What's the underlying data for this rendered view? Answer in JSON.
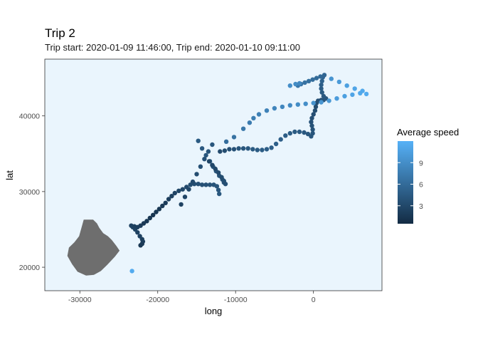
{
  "chart_data": {
    "type": "scatter",
    "title": "Trip 2",
    "subtitle": "Trip start: 2020-01-09 11:46:00, Trip end: 2020-01-10 09:11:00",
    "xlabel": "long",
    "ylabel": "lat",
    "xlim": [
      -34500,
      8800
    ],
    "ylim": [
      16900,
      47500
    ],
    "x_ticks": [
      -30000,
      -20000,
      -10000,
      0
    ],
    "x_tick_labels": [
      "-30000",
      "-20000",
      "-10000",
      "0"
    ],
    "y_ticks": [
      20000,
      30000,
      40000
    ],
    "y_tick_labels": [
      "20000",
      "30000",
      "40000"
    ],
    "panel_background": "#eaf5fd",
    "land_color": "#6e6e6e",
    "legend": {
      "title": "Average speed",
      "position": "right",
      "ticks": [
        3,
        6,
        9
      ],
      "tick_labels": [
        "3",
        "6",
        "9"
      ],
      "range": [
        0.5,
        12
      ],
      "low_color": "#132b43",
      "high_color": "#56b1f7"
    },
    "land_outline": [
      [
        -29500,
        26300
      ],
      [
        -28300,
        26300
      ],
      [
        -27800,
        25800
      ],
      [
        -27500,
        25200
      ],
      [
        -27000,
        24500
      ],
      [
        -26400,
        24100
      ],
      [
        -25900,
        23600
      ],
      [
        -25300,
        22800
      ],
      [
        -24900,
        22200
      ],
      [
        -25500,
        21400
      ],
      [
        -26500,
        20300
      ],
      [
        -27300,
        19500
      ],
      [
        -28200,
        19000
      ],
      [
        -29200,
        18900
      ],
      [
        -30300,
        19400
      ],
      [
        -31000,
        20400
      ],
      [
        -31600,
        21500
      ],
      [
        -31400,
        22600
      ],
      [
        -30700,
        23300
      ],
      [
        -30100,
        24100
      ],
      [
        -29800,
        25200
      ]
    ],
    "series": [
      {
        "points": [
          [
            -23300,
            19500,
            11.5
          ],
          [
            -22200,
            22900,
            1.5
          ],
          [
            -22000,
            23100,
            1.8
          ],
          [
            -21900,
            23400,
            2.0
          ],
          [
            -22000,
            23700,
            2.2
          ],
          [
            -22300,
            24100,
            2.4
          ],
          [
            -22600,
            24600,
            2.5
          ],
          [
            -22900,
            25000,
            2.6
          ],
          [
            -23200,
            25300,
            2.7
          ],
          [
            -23400,
            25500,
            2.5
          ],
          [
            -23000,
            25400,
            2.3
          ],
          [
            -22600,
            25300,
            2.2
          ],
          [
            -22200,
            25500,
            2.0
          ],
          [
            -21800,
            25800,
            1.8
          ],
          [
            -21400,
            26100,
            1.6
          ],
          [
            -21000,
            26500,
            1.5
          ],
          [
            -20600,
            26900,
            1.4
          ],
          [
            -20200,
            27300,
            1.5
          ],
          [
            -19800,
            27700,
            1.6
          ],
          [
            -19400,
            28100,
            1.8
          ],
          [
            -19000,
            28500,
            2.0
          ],
          [
            -18600,
            29000,
            2.2
          ],
          [
            -18200,
            29400,
            2.4
          ],
          [
            -17800,
            29800,
            2.6
          ],
          [
            -17300,
            30100,
            2.8
          ],
          [
            -16800,
            30300,
            3.0
          ],
          [
            -16300,
            30600,
            3.2
          ],
          [
            -15800,
            30900,
            3.4
          ],
          [
            -15300,
            31000,
            3.5
          ],
          [
            -14800,
            31000,
            3.6
          ],
          [
            -14300,
            30900,
            3.7
          ],
          [
            -13800,
            30900,
            3.8
          ],
          [
            -13300,
            30900,
            3.9
          ],
          [
            -12800,
            30900,
            4.0
          ],
          [
            -12400,
            30700,
            4.1
          ],
          [
            -12200,
            30200,
            4.2
          ],
          [
            -12100,
            29700,
            4.3
          ],
          [
            -17000,
            28300,
            2.5
          ],
          [
            -16500,
            29300,
            2.8
          ],
          [
            -16000,
            30300,
            3.0
          ],
          [
            -15500,
            31300,
            3.2
          ],
          [
            -15000,
            32300,
            3.4
          ],
          [
            -14500,
            33300,
            3.6
          ],
          [
            -14000,
            34300,
            3.8
          ],
          [
            -13500,
            35300,
            4.0
          ],
          [
            -13000,
            36200,
            4.2
          ],
          [
            -14800,
            36700,
            4.5
          ],
          [
            -14300,
            35700,
            4.4
          ],
          [
            -13800,
            34800,
            4.3
          ],
          [
            -13300,
            34000,
            4.2
          ],
          [
            -12900,
            33300,
            4.1
          ],
          [
            -12500,
            32700,
            4.0
          ],
          [
            -12100,
            32100,
            3.9
          ],
          [
            -11700,
            31600,
            3.8
          ],
          [
            -11500,
            31200,
            3.7
          ],
          [
            -11300,
            31000,
            3.6
          ],
          [
            -11500,
            31400,
            3.5
          ],
          [
            -11800,
            31900,
            3.4
          ],
          [
            -12200,
            32500,
            3.2
          ],
          [
            -12600,
            33000,
            3.0
          ],
          [
            -13000,
            33500,
            2.9
          ],
          [
            -13400,
            34000,
            2.8
          ],
          [
            -12000,
            35300,
            3.2
          ],
          [
            -11400,
            35400,
            3.4
          ],
          [
            -10800,
            35600,
            3.6
          ],
          [
            -10200,
            35600,
            3.8
          ],
          [
            -9600,
            35700,
            4.0
          ],
          [
            -9000,
            35700,
            4.2
          ],
          [
            -8400,
            35700,
            4.4
          ],
          [
            -7800,
            35600,
            4.5
          ],
          [
            -7200,
            35500,
            4.6
          ],
          [
            -6600,
            35500,
            4.7
          ],
          [
            -6000,
            35600,
            4.8
          ],
          [
            -5400,
            35800,
            4.9
          ],
          [
            -4800,
            36300,
            5.0
          ],
          [
            -4200,
            36900,
            4.9
          ],
          [
            -3600,
            37400,
            4.8
          ],
          [
            -3000,
            37700,
            4.7
          ],
          [
            -2400,
            37900,
            4.6
          ],
          [
            -1800,
            37900,
            4.5
          ],
          [
            -1200,
            37800,
            4.4
          ],
          [
            -700,
            37600,
            4.3
          ],
          [
            -300,
            37300,
            4.2
          ],
          [
            -100,
            37700,
            4.1
          ],
          [
            -100,
            38200,
            4.0
          ],
          [
            -200,
            38700,
            3.9
          ],
          [
            -300,
            39200,
            3.8
          ],
          [
            -200,
            39700,
            3.7
          ],
          [
            0,
            40200,
            3.6
          ],
          [
            200,
            40700,
            3.5
          ],
          [
            300,
            41200,
            3.4
          ],
          [
            400,
            41700,
            3.5
          ],
          [
            600,
            42000,
            3.6
          ],
          [
            1000,
            42100,
            3.8
          ],
          [
            1300,
            42100,
            4.0
          ],
          [
            1600,
            42300,
            4.2
          ],
          [
            1300,
            42600,
            4.4
          ],
          [
            1100,
            43100,
            4.6
          ],
          [
            1000,
            43600,
            4.8
          ],
          [
            1000,
            44100,
            5.0
          ],
          [
            1100,
            44600,
            5.2
          ],
          [
            1200,
            45100,
            5.4
          ],
          [
            1400,
            45400,
            5.6
          ],
          [
            900,
            45200,
            5.8
          ],
          [
            400,
            45000,
            6.0
          ],
          [
            -100,
            44800,
            6.2
          ],
          [
            -600,
            44600,
            6.4
          ],
          [
            -1100,
            44400,
            6.6
          ],
          [
            -1600,
            44200,
            6.8
          ],
          [
            -2000,
            44000,
            7.0
          ],
          [
            -3000,
            44000,
            9.0
          ],
          [
            -2300,
            44200,
            8.8
          ],
          [
            -1800,
            44300,
            8.5
          ],
          [
            2300,
            44900,
            9.5
          ],
          [
            3300,
            44500,
            10.0
          ],
          [
            4300,
            44000,
            10.5
          ],
          [
            5300,
            43600,
            11.0
          ],
          [
            6300,
            43300,
            11.3
          ],
          [
            6800,
            42900,
            11.5
          ],
          [
            6000,
            43000,
            11.2
          ],
          [
            5000,
            42800,
            10.9
          ],
          [
            4000,
            42600,
            10.5
          ],
          [
            3000,
            42300,
            10.2
          ],
          [
            2000,
            42000,
            9.9
          ],
          [
            1000,
            41800,
            9.6
          ],
          [
            0,
            41700,
            9.3
          ],
          [
            -1000,
            41600,
            9.0
          ],
          [
            -2000,
            41500,
            8.8
          ],
          [
            -3000,
            41400,
            8.6
          ],
          [
            -4000,
            41200,
            8.4
          ],
          [
            -5000,
            41000,
            8.2
          ],
          [
            -6000,
            40700,
            8.0
          ],
          [
            -7000,
            40200,
            7.8
          ],
          [
            -7700,
            39700,
            7.6
          ],
          [
            -8200,
            39100,
            7.4
          ],
          [
            -9000,
            38300,
            7.0
          ],
          [
            -10200,
            37200,
            6.6
          ],
          [
            -11200,
            36600,
            6.2
          ]
        ]
      }
    ]
  }
}
